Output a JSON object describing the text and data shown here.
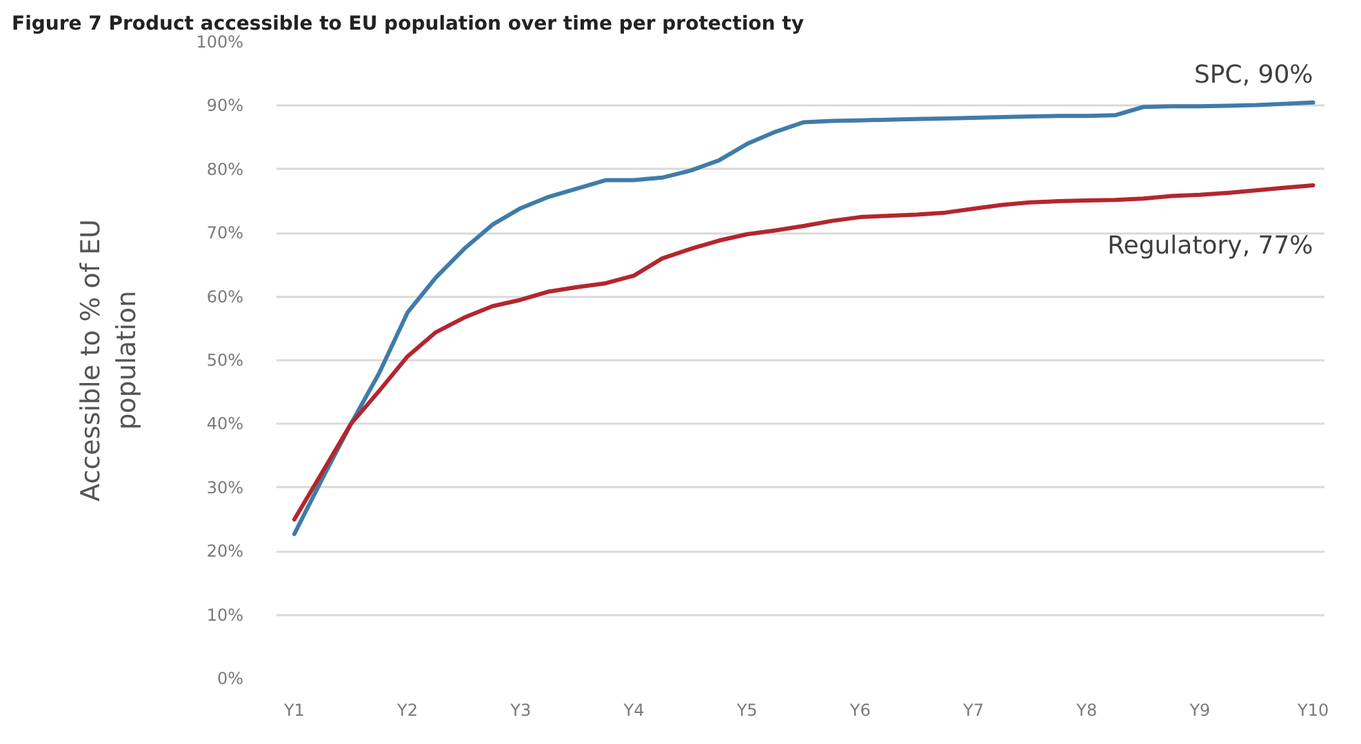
{
  "chart_data": {
    "type": "line",
    "title": "Figure 7 Product accessible to EU population over time per protection ty",
    "ylabel": "Accessible to % of EU\npopulation",
    "categories": [
      "Y1",
      null,
      null,
      null,
      "Y2",
      null,
      null,
      null,
      "Y3",
      null,
      null,
      null,
      "Y4",
      null,
      null,
      null,
      "Y5",
      null,
      null,
      null,
      "Y6",
      null,
      null,
      null,
      "Y7",
      null,
      null,
      null,
      "Y8",
      null,
      null,
      null,
      "Y9",
      null,
      null,
      null,
      "Y10"
    ],
    "ylim": [
      0,
      100
    ],
    "yticks": [
      {
        "value": 0,
        "label": "0%"
      },
      {
        "value": 10,
        "label": "10%"
      },
      {
        "value": 20,
        "label": "20%"
      },
      {
        "value": 30,
        "label": "30%"
      },
      {
        "value": 40,
        "label": "40%"
      },
      {
        "value": 50,
        "label": "50%"
      },
      {
        "value": 60,
        "label": "60%"
      },
      {
        "value": 70,
        "label": "70%"
      },
      {
        "value": 80,
        "label": "80%"
      },
      {
        "value": 90,
        "label": "90%"
      },
      {
        "value": 100,
        "label": "100%"
      }
    ],
    "grid": "y",
    "line_style": "solid",
    "series": [
      {
        "color": "#3f7ca8",
        "values": [
          22.7,
          31.5,
          40,
          48,
          57.5,
          63,
          67.5,
          71.3,
          73.9,
          75.7,
          77,
          78.3,
          78.3,
          78.7,
          79.8,
          81.4,
          84,
          85.9,
          87.4,
          87.6,
          87.7,
          87.8,
          87.9,
          88,
          88.1,
          88.2,
          88.3,
          88.4,
          88.4,
          88.5,
          89.8,
          89.9,
          89.9,
          90,
          90.1,
          90.3,
          90.5
        ]
      },
      {
        "color": "#b3262f",
        "values": [
          25,
          32.5,
          40,
          45.2,
          50.6,
          54.4,
          56.7,
          58.5,
          59.5,
          60.8,
          61.5,
          62.1,
          63.3,
          66,
          67.5,
          68.8,
          69.8,
          70.4,
          71.1,
          71.9,
          72.5,
          72.7,
          72.9,
          73.2,
          73.8,
          74.4,
          74.8,
          75,
          75.1,
          75.2,
          75.4,
          75.8,
          76,
          76.3,
          76.7,
          77.1,
          77.5
        ]
      }
    ],
    "annotations": [
      "SPC, 90%",
      "Regulatory, 77%"
    ]
  }
}
